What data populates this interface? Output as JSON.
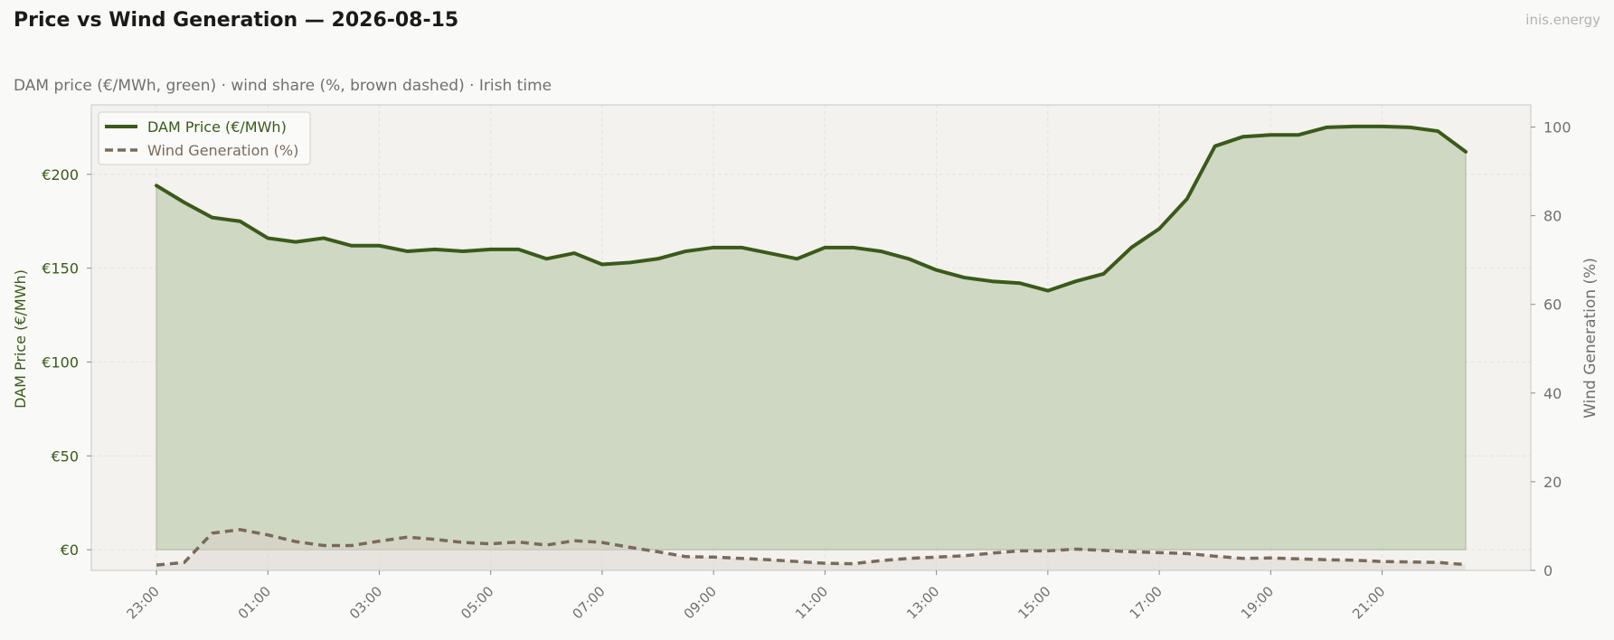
{
  "header": {
    "title": "Price vs Wind Generation — 2026-08-15",
    "brand": "inis.energy",
    "subtitle": "DAM price (€/MWh, green)  ·  wind share (%, brown dashed)  ·  Irish time"
  },
  "colors": {
    "price": "#3a5a1a",
    "price_fill": "#c8d4bb",
    "wind": "#7a6a5a",
    "plot_bg": "#f3f2ee",
    "grid": "#e4e3de",
    "axis_text": "#707070"
  },
  "chart_data": {
    "type": "line",
    "x": [
      "23:00",
      "23:30",
      "00:00",
      "00:30",
      "01:00",
      "01:30",
      "02:00",
      "02:30",
      "03:00",
      "03:30",
      "04:00",
      "04:30",
      "05:00",
      "05:30",
      "06:00",
      "06:30",
      "07:00",
      "07:30",
      "08:00",
      "08:30",
      "09:00",
      "09:30",
      "10:00",
      "10:30",
      "11:00",
      "11:30",
      "12:00",
      "12:30",
      "13:00",
      "13:30",
      "14:00",
      "14:30",
      "15:00",
      "15:30",
      "16:00",
      "16:30",
      "17:00",
      "17:30",
      "18:00",
      "18:30",
      "19:00",
      "19:30",
      "20:00",
      "20:30",
      "21:00",
      "21:30",
      "22:00",
      "22:30"
    ],
    "x_ticks": [
      "23:00",
      "01:00",
      "03:00",
      "05:00",
      "07:00",
      "09:00",
      "11:00",
      "13:00",
      "15:00",
      "17:00",
      "19:00",
      "21:00"
    ],
    "series": [
      {
        "name": "DAM Price (€/MWh)",
        "axis": "left",
        "style": "solid",
        "values": [
          194,
          185,
          177,
          175,
          166,
          164,
          166,
          162,
          162,
          159,
          160,
          159,
          160,
          160,
          155,
          158,
          152,
          153,
          155,
          159,
          161,
          161,
          158,
          155,
          161,
          161,
          159,
          155,
          149,
          145,
          143,
          142,
          138,
          143,
          147,
          161,
          171,
          187,
          215,
          220,
          221,
          221,
          225,
          225.5,
          225.5,
          225,
          223,
          212
        ]
      },
      {
        "name": "Wind Generation (%)",
        "axis": "right",
        "style": "dashed",
        "values": [
          1.2,
          1.8,
          8.4,
          9.2,
          8,
          6.5,
          5.6,
          5.6,
          6.6,
          7.5,
          7,
          6.3,
          6,
          6.4,
          5.7,
          6.7,
          6.3,
          5.2,
          4.2,
          3.1,
          3,
          2.7,
          2.4,
          2,
          1.6,
          1.5,
          2.2,
          2.7,
          3,
          3.3,
          3.9,
          4.4,
          4.4,
          4.8,
          4.5,
          4.2,
          4,
          3.8,
          3.2,
          2.7,
          2.8,
          2.6,
          2.4,
          2.3,
          2,
          1.9,
          1.8,
          1.3
        ]
      }
    ],
    "y_left": {
      "label": "DAM Price (€/MWh)",
      "ylim": [
        -11,
        237
      ],
      "ticks": [
        0,
        50,
        100,
        150,
        200
      ],
      "tick_labels": [
        "€0",
        "€50",
        "€100",
        "€150",
        "€200"
      ]
    },
    "y_right": {
      "label": "Wind Generation (%)",
      "ylim": [
        0,
        105
      ],
      "ticks": [
        0,
        20,
        40,
        60,
        80,
        100
      ],
      "tick_labels": [
        "0",
        "20",
        "40",
        "60",
        "80",
        "100"
      ]
    },
    "grid": true,
    "legend_position": "top-left"
  }
}
